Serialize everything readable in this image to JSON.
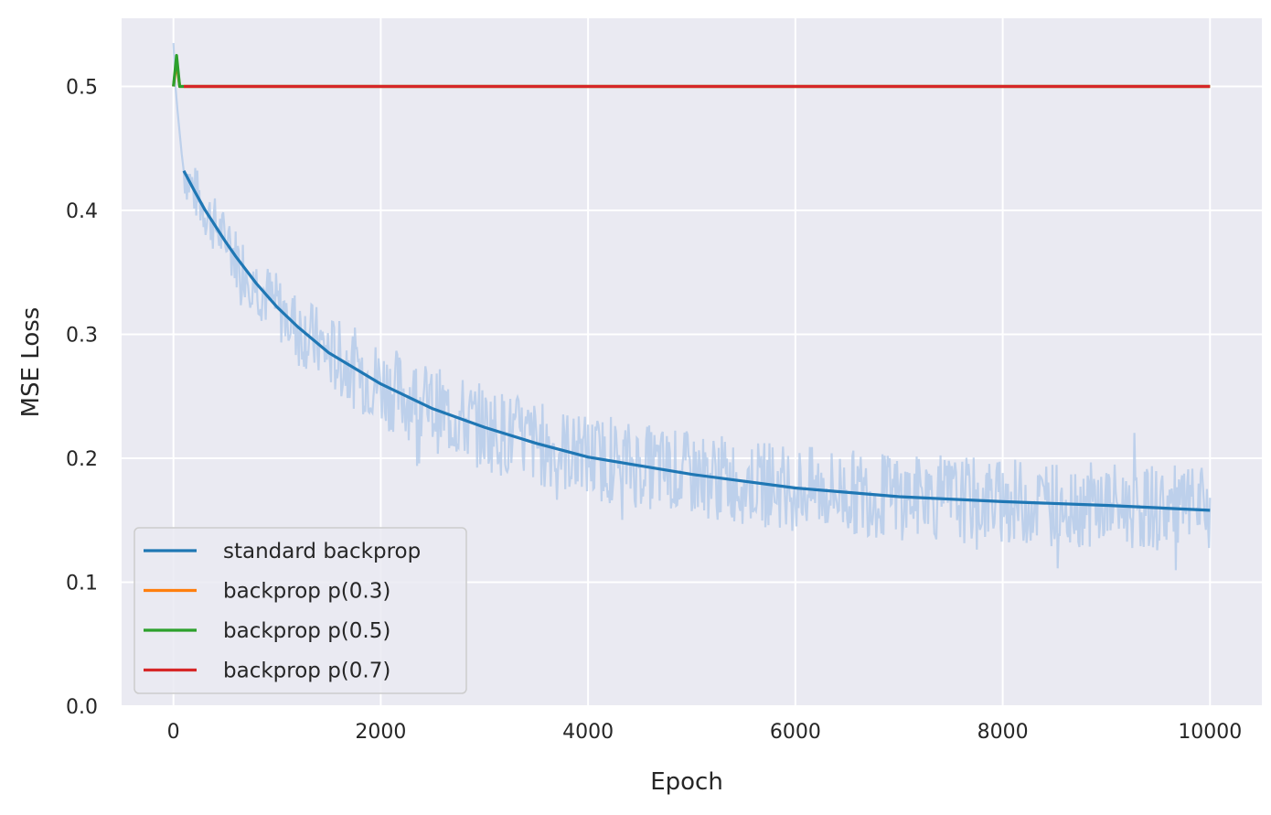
{
  "chart_data": {
    "type": "line",
    "xlabel": "Epoch",
    "ylabel": "MSE Loss",
    "xlim": [
      -500,
      10500
    ],
    "ylim": [
      0.0,
      0.555
    ],
    "xticks": [
      0,
      2000,
      4000,
      6000,
      8000,
      10000
    ],
    "yticks": [
      0.0,
      0.1,
      0.2,
      0.3,
      0.4,
      0.5
    ],
    "xtick_labels": [
      "0",
      "2000",
      "4000",
      "6000",
      "8000",
      "10000"
    ],
    "ytick_labels": [
      "0.0",
      "0.1",
      "0.2",
      "0.3",
      "0.4",
      "0.5"
    ],
    "grid": true,
    "legend_position": "lower-left",
    "background_color": "#eaeaf2",
    "series": [
      {
        "name": "standard backprop",
        "color": "#1f77b4",
        "raw_color": "#aec7e8",
        "raw_spread": 0.035,
        "raw_start": [
          [
            0,
            0.535
          ],
          [
            20,
            0.5
          ],
          [
            40,
            0.48
          ],
          [
            80,
            0.445
          ]
        ],
        "x": [
          100,
          200,
          300,
          400,
          500,
          600,
          800,
          1000,
          1200,
          1500,
          2000,
          2500,
          3000,
          3500,
          4000,
          5000,
          6000,
          7000,
          8000,
          9000,
          10000
        ],
        "values": [
          0.432,
          0.416,
          0.401,
          0.388,
          0.375,
          0.363,
          0.341,
          0.322,
          0.306,
          0.285,
          0.26,
          0.24,
          0.225,
          0.212,
          0.201,
          0.187,
          0.176,
          0.169,
          0.165,
          0.162,
          0.158
        ]
      },
      {
        "name": "backprop p(0.3)",
        "color": "#ff7f0e",
        "x": [
          0,
          30,
          60,
          100,
          10000
        ],
        "values": [
          0.5,
          0.52,
          0.5,
          0.5,
          0.5
        ]
      },
      {
        "name": "backprop p(0.5)",
        "color": "#2ca02c",
        "x": [
          0,
          30,
          60,
          100,
          10000
        ],
        "values": [
          0.5,
          0.525,
          0.5,
          0.5,
          0.5
        ]
      },
      {
        "name": "backprop p(0.7)",
        "color": "#d62728",
        "x": [
          100,
          10000
        ],
        "values": [
          0.5,
          0.5
        ]
      }
    ]
  }
}
